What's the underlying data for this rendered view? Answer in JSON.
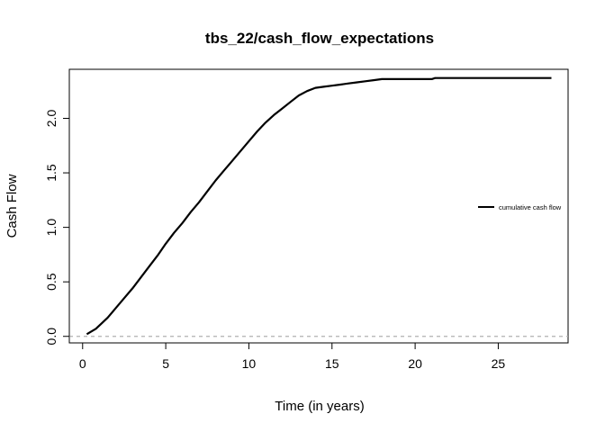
{
  "chart_data": {
    "type": "line",
    "title": "tbs_22/cash_flow_expectations",
    "xlabel": "Time (in years)",
    "ylabel": "Cash Flow",
    "xlim": [
      -0.8,
      29.2
    ],
    "ylim": [
      -0.06,
      2.45
    ],
    "x_ticks": [
      0,
      5,
      10,
      15,
      20,
      25
    ],
    "x_tick_labels": [
      "0",
      "5",
      "10",
      "15",
      "20",
      "25"
    ],
    "y_ticks": [
      0.0,
      0.5,
      1.0,
      1.5,
      2.0
    ],
    "y_tick_labels": [
      "0.0",
      "0.5",
      "1.0",
      "1.5",
      "2.0"
    ],
    "reference_line": {
      "y": 0,
      "style": "dashed",
      "color": "#b0b0b0"
    },
    "legend": {
      "position": "right",
      "entries": [
        "cumulative cash flow"
      ]
    },
    "series": [
      {
        "name": "cumulative cash flow",
        "color": "#000000",
        "x": [
          0.25,
          0.8,
          1.5,
          2.0,
          2.5,
          3.0,
          3.5,
          4.0,
          4.5,
          5.0,
          5.5,
          6.0,
          6.5,
          7.0,
          7.5,
          8.0,
          8.5,
          9.0,
          9.5,
          10.0,
          10.5,
          11.0,
          11.5,
          12.0,
          12.5,
          13.0,
          13.5,
          14.0,
          14.5,
          15.0,
          15.5,
          16.0,
          16.5,
          17.0,
          17.5,
          18.0,
          19.0,
          20.0,
          21.0,
          21.2,
          22.0,
          23.0,
          24.0,
          25.0,
          26.0,
          27.0,
          28.2
        ],
        "y": [
          0.02,
          0.07,
          0.17,
          0.26,
          0.35,
          0.44,
          0.54,
          0.64,
          0.74,
          0.85,
          0.95,
          1.04,
          1.14,
          1.23,
          1.33,
          1.43,
          1.52,
          1.61,
          1.7,
          1.79,
          1.88,
          1.96,
          2.03,
          2.09,
          2.15,
          2.21,
          2.25,
          2.28,
          2.29,
          2.3,
          2.31,
          2.32,
          2.33,
          2.34,
          2.35,
          2.36,
          2.36,
          2.36,
          2.36,
          2.37,
          2.37,
          2.37,
          2.37,
          2.37,
          2.37,
          2.37,
          2.37
        ]
      }
    ]
  }
}
